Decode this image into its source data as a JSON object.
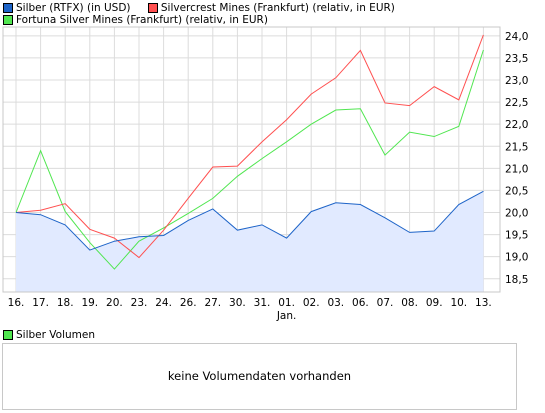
{
  "legend": {
    "series": [
      {
        "label": "Silber (RTFX) (in USD)",
        "color": "#1e64c8"
      },
      {
        "label": "Silvercrest Mines (Frankfurt) (relativ, in EUR)",
        "color": "#ff5050"
      },
      {
        "label": "Fortuna Silver Mines (Frankfurt) (relativ, in EUR)",
        "color": "#50e650"
      }
    ]
  },
  "volume": {
    "legend_label": "Silber Volumen",
    "legend_color": "#50e650",
    "message": "keine Volumendaten vorhanden"
  },
  "chart_data": {
    "type": "line",
    "categories": [
      "16.",
      "17.",
      "18.",
      "19.",
      "20.",
      "23.",
      "24.",
      "26.",
      "27.",
      "30.",
      "31.",
      "01.",
      "02.",
      "03.",
      "06.",
      "07.",
      "08.",
      "09.",
      "10.",
      "13."
    ],
    "month_label": {
      "text": "Jan.",
      "at": "01."
    },
    "ylim": [
      18.2,
      24.2
    ],
    "yticks": [
      18.5,
      19.0,
      19.5,
      20.0,
      20.5,
      21.0,
      21.5,
      22.0,
      22.5,
      23.0,
      23.5,
      24.0
    ],
    "ytick_labels": [
      "18,5",
      "19,0",
      "19,5",
      "20,0",
      "20,5",
      "21,0",
      "21,5",
      "22,0",
      "22,5",
      "23,0",
      "23,5",
      "24,0"
    ],
    "grid": true,
    "series": [
      {
        "name": "Silber (RTFX) (in USD)",
        "color": "#1e64c8",
        "fill": "#e1eaff",
        "values": [
          20.0,
          19.95,
          19.72,
          19.15,
          19.35,
          19.45,
          19.48,
          19.82,
          20.08,
          19.6,
          19.72,
          19.42,
          20.02,
          20.22,
          20.18,
          19.88,
          19.55,
          19.58,
          20.18,
          20.48
        ]
      },
      {
        "name": "Silvercrest Mines (Frankfurt) (relativ, in EUR)",
        "color": "#ff5050",
        "values": [
          20.0,
          20.05,
          20.2,
          19.62,
          19.42,
          18.98,
          19.6,
          20.32,
          21.03,
          21.05,
          21.6,
          22.1,
          22.68,
          23.05,
          23.67,
          22.48,
          22.42,
          22.85,
          22.55,
          24.02
        ]
      },
      {
        "name": "Fortuna Silver Mines (Frankfurt) (relativ, in EUR)",
        "color": "#50e650",
        "values": [
          20.0,
          21.4,
          20.02,
          19.32,
          18.72,
          19.35,
          19.65,
          19.98,
          20.32,
          20.82,
          21.22,
          21.6,
          22.0,
          22.32,
          22.35,
          21.3,
          21.82,
          21.72,
          21.95,
          23.68
        ]
      }
    ]
  }
}
